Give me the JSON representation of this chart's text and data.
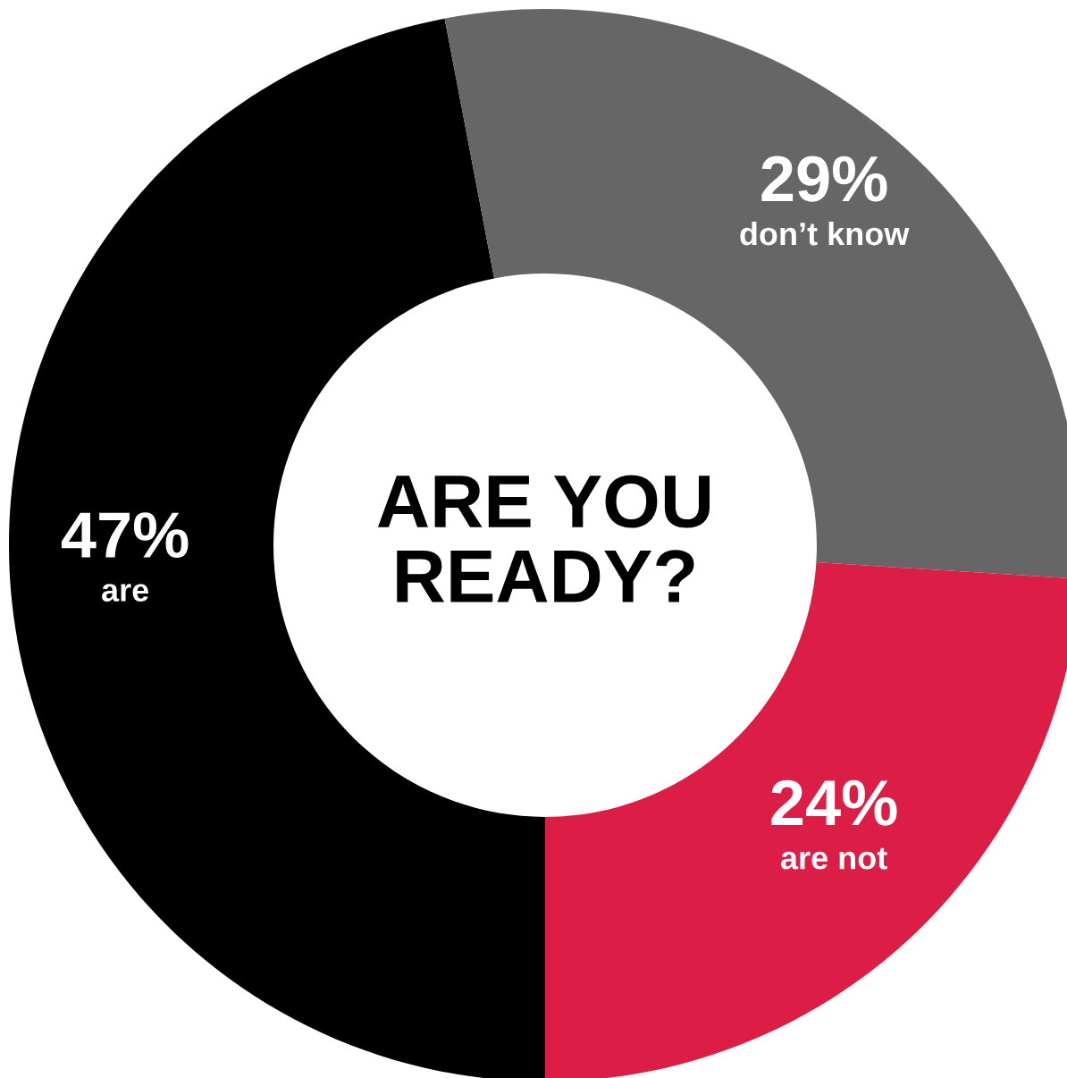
{
  "chart_data": {
    "type": "donut",
    "title": "ARE YOU\nREADY?",
    "categories": [
      "are",
      "don’t know",
      "are not"
    ],
    "values": [
      47,
      29,
      24
    ],
    "colors": [
      "#000000",
      "#666666",
      "#dc1e46"
    ],
    "value_labels": [
      "47%",
      "29%",
      "24%"
    ]
  }
}
